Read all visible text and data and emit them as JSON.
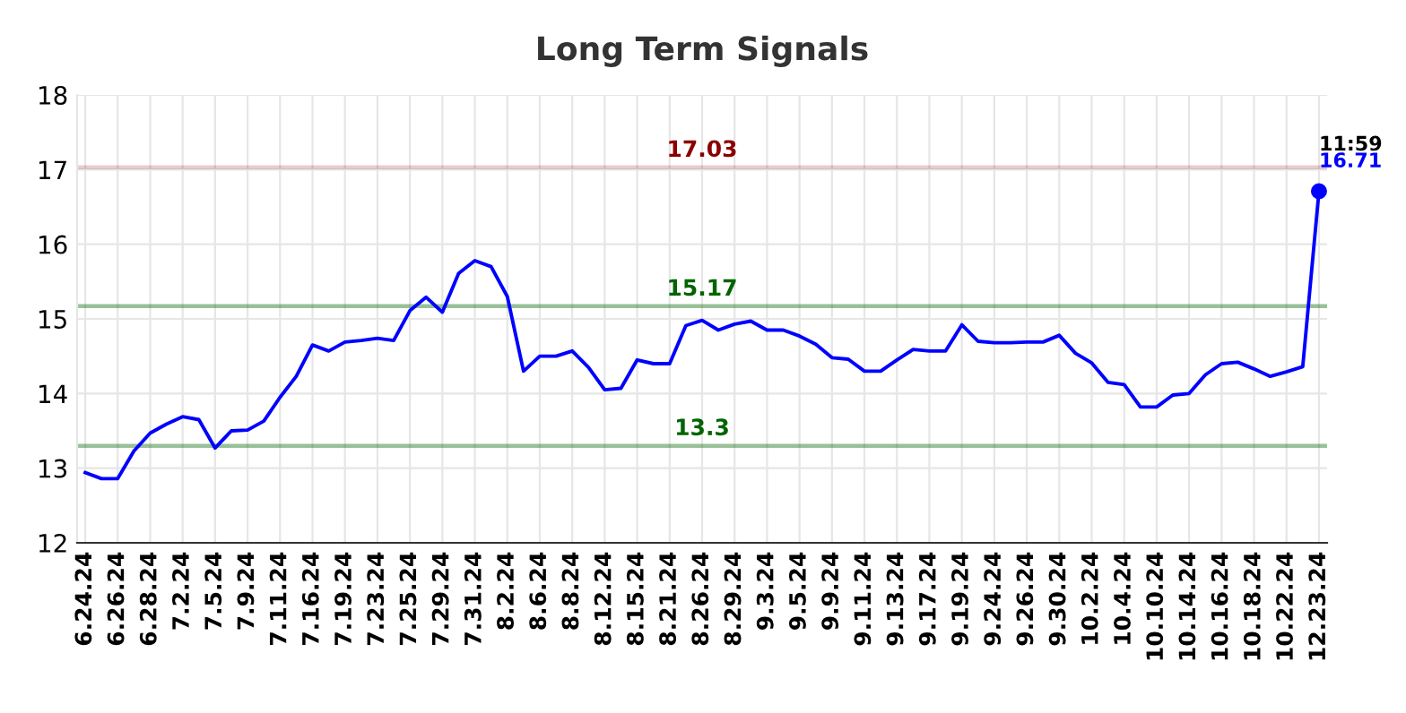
{
  "chart_data": {
    "type": "line",
    "title": "Long Term Signals",
    "categories": [
      "6.24.24",
      null,
      "6.26.24",
      null,
      "6.28.24",
      null,
      "7.2.24",
      null,
      "7.5.24",
      null,
      "7.9.24",
      null,
      "7.11.24",
      null,
      "7.16.24",
      null,
      "7.19.24",
      null,
      "7.23.24",
      null,
      "7.25.24",
      null,
      "7.29.24",
      null,
      "7.31.24",
      null,
      "8.2.24",
      null,
      "8.6.24",
      null,
      "8.8.24",
      null,
      "8.12.24",
      null,
      "8.15.24",
      null,
      "8.21.24",
      null,
      "8.26.24",
      null,
      "8.29.24",
      null,
      "9.3.24",
      null,
      "9.5.24",
      null,
      "9.9.24",
      null,
      "9.11.24",
      null,
      "9.13.24",
      null,
      "9.17.24",
      null,
      "9.19.24",
      null,
      "9.24.24",
      null,
      "9.26.24",
      null,
      "9.30.24",
      null,
      "10.2.24",
      null,
      "10.4.24",
      null,
      "10.10.24",
      null,
      "10.14.24",
      null,
      "10.16.24",
      null,
      "10.18.24",
      null,
      "10.22.24",
      null,
      "12.23.24"
    ],
    "series": [
      {
        "color": "#0000ff",
        "values": [
          12.94,
          12.86,
          12.86,
          13.23,
          13.47,
          13.59,
          13.69,
          13.65,
          13.27,
          13.5,
          13.51,
          13.63,
          13.95,
          14.23,
          14.65,
          14.57,
          14.69,
          14.71,
          14.74,
          14.71,
          15.11,
          15.29,
          15.09,
          15.61,
          15.78,
          15.7,
          15.3,
          14.3,
          14.5,
          14.5,
          14.57,
          14.35,
          14.05,
          14.07,
          14.45,
          14.4,
          14.4,
          14.91,
          14.98,
          14.85,
          14.93,
          14.97,
          14.85,
          14.85,
          14.77,
          14.66,
          14.48,
          14.46,
          14.3,
          14.3,
          14.45,
          14.59,
          14.57,
          14.57,
          14.92,
          14.7,
          14.68,
          14.68,
          14.69,
          14.69,
          14.78,
          14.54,
          14.41,
          14.15,
          14.12,
          13.82,
          13.82,
          13.98,
          14.0,
          14.25,
          14.4,
          14.42,
          14.33,
          14.23,
          14.29,
          14.36,
          16.71
        ]
      },
      {
        "type": "scatter",
        "color": "#0000ff",
        "x": [
          "12.23.24"
        ],
        "values": [
          16.71
        ],
        "marker": "circle"
      }
    ],
    "ref_lines": [
      {
        "axis": "y",
        "value": 17.03,
        "label": "17.03",
        "color": "#8b0000"
      },
      {
        "axis": "y",
        "value": 15.17,
        "label": "15.17",
        "color": "#006400"
      },
      {
        "axis": "y",
        "value": 13.3,
        "label": "13.3",
        "color": "#006400"
      }
    ],
    "annotations": [
      "11:59",
      {
        "text": "16.71",
        "x": "12.23.24",
        "y": 16.71
      }
    ],
    "ylim": [
      12,
      18
    ],
    "yticks": [
      12,
      13,
      14,
      15,
      16,
      17,
      18
    ],
    "grid": true,
    "legend": false
  }
}
